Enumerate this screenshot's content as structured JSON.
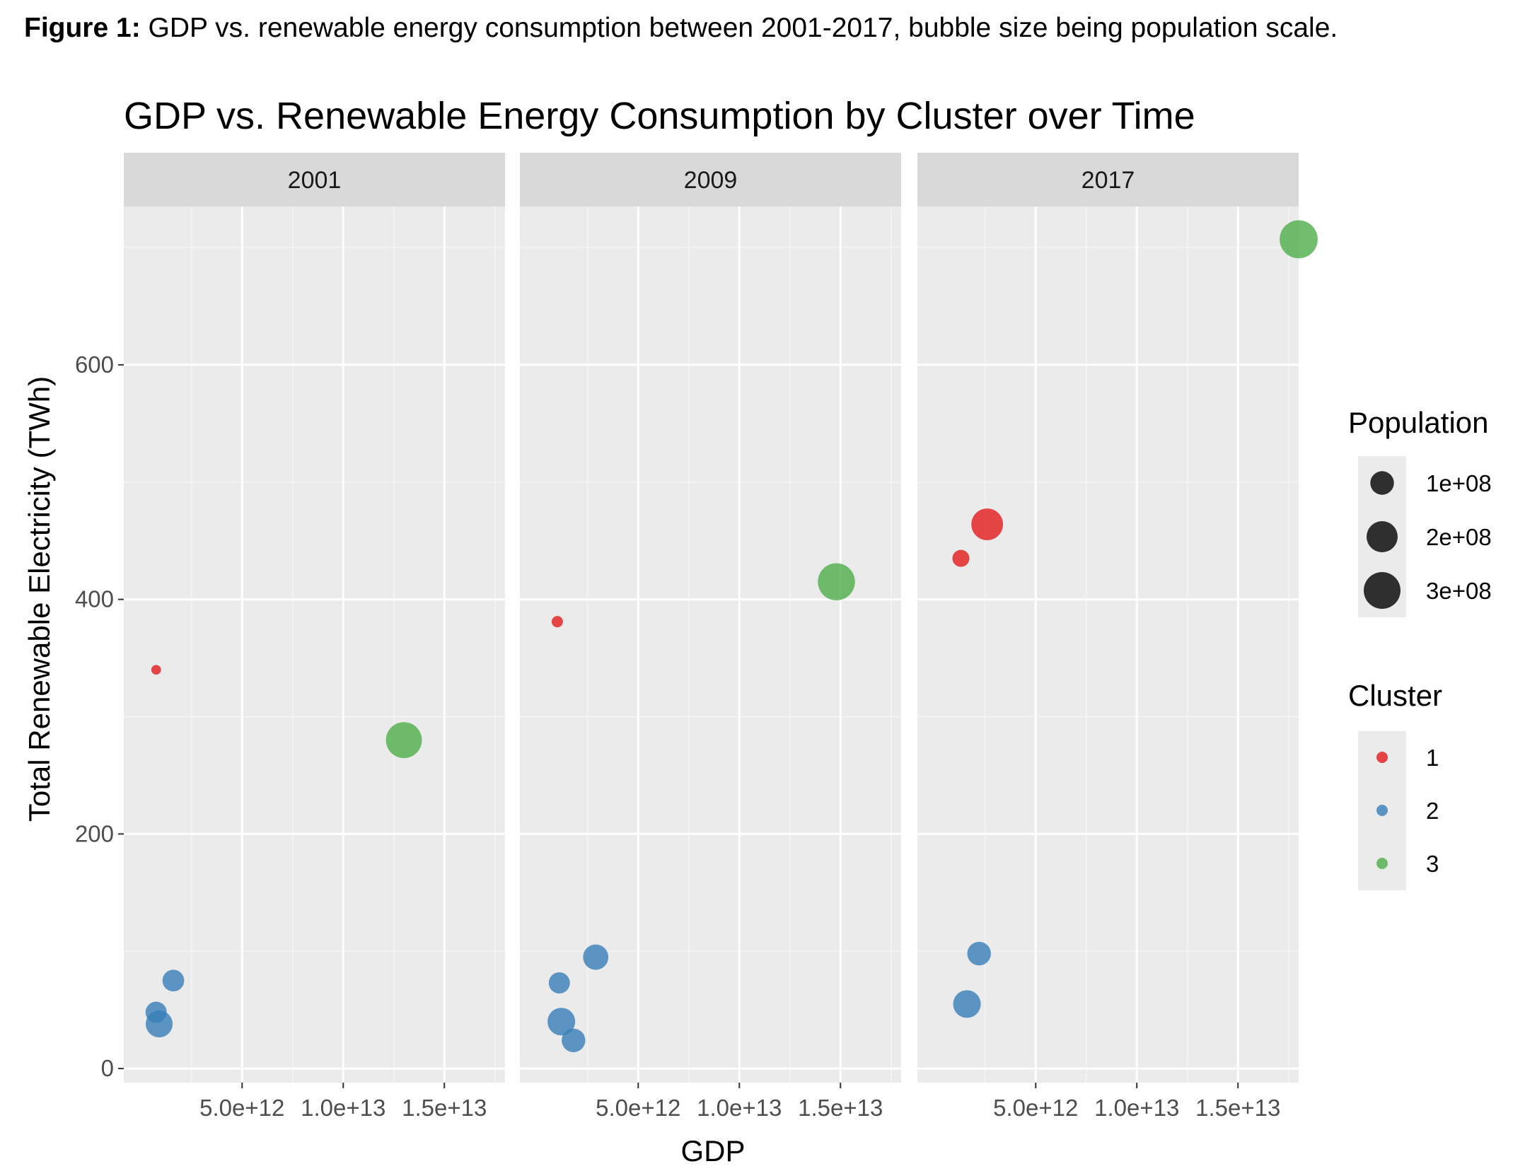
{
  "caption": {
    "label": "Figure 1:",
    "text": " GDP vs. renewable energy consumption between 2001-2017, bubble size being population scale."
  },
  "chart_data": {
    "type": "scatter",
    "title": "GDP vs. Renewable Energy Consumption by Cluster over Time",
    "xlabel": "GDP",
    "ylabel": "Total Renewable Electricity (TWh)",
    "xlim": [
      -850000000000.0,
      18000000000000.0
    ],
    "ylim": [
      -12,
      735
    ],
    "x_ticks": [
      5000000000000.0,
      10000000000000.0,
      15000000000000.0
    ],
    "x_tick_labels": [
      "5.0e+12",
      "1.0e+13",
      "1.5e+13"
    ],
    "y_ticks": [
      0,
      200,
      400,
      600
    ],
    "y_tick_labels": [
      "0",
      "200",
      "400",
      "600"
    ],
    "grid": true,
    "facets": [
      "2001",
      "2009",
      "2017"
    ],
    "legend_placement": "right",
    "legend_population": {
      "title": "Population",
      "entries": [
        {
          "label": "1e+08",
          "value": 100000000
        },
        {
          "label": "2e+08",
          "value": 200000000
        },
        {
          "label": "3e+08",
          "value": 300000000
        }
      ]
    },
    "legend_cluster": {
      "title": "Cluster",
      "entries": [
        {
          "label": "1",
          "color": "#e41a1c"
        },
        {
          "label": "2",
          "color": "#377eb8"
        },
        {
          "label": "3",
          "color": "#4daf4a"
        }
      ]
    },
    "points": [
      {
        "facet": "2001",
        "cluster": "1",
        "gdp": 750000000000.0,
        "twh": 340,
        "population": 5000000
      },
      {
        "facet": "2001",
        "cluster": "2",
        "gdp": 1600000000000.0,
        "twh": 75,
        "population": 80000000
      },
      {
        "facet": "2001",
        "cluster": "2",
        "gdp": 750000000000.0,
        "twh": 48,
        "population": 75000000
      },
      {
        "facet": "2001",
        "cluster": "2",
        "gdp": 900000000000.0,
        "twh": 38,
        "population": 140000000
      },
      {
        "facet": "2001",
        "cluster": "3",
        "gdp": 13000000000000.0,
        "twh": 280,
        "population": 285000000
      },
      {
        "facet": "2009",
        "cluster": "1",
        "gdp": 1000000000000.0,
        "twh": 381,
        "population": 10000000
      },
      {
        "facet": "2009",
        "cluster": "2",
        "gdp": 2900000000000.0,
        "twh": 95,
        "population": 120000000
      },
      {
        "facet": "2009",
        "cluster": "2",
        "gdp": 1100000000000.0,
        "twh": 73,
        "population": 75000000
      },
      {
        "facet": "2009",
        "cluster": "2",
        "gdp": 1200000000000.0,
        "twh": 40,
        "population": 150000000
      },
      {
        "facet": "2009",
        "cluster": "2",
        "gdp": 1800000000000.0,
        "twh": 24,
        "population": 100000000
      },
      {
        "facet": "2009",
        "cluster": "3",
        "gdp": 14800000000000.0,
        "twh": 415,
        "population": 307000000
      },
      {
        "facet": "2017",
        "cluster": "1",
        "gdp": 1300000000000.0,
        "twh": 435,
        "population": 40000000
      },
      {
        "facet": "2017",
        "cluster": "1",
        "gdp": 2600000000000.0,
        "twh": 464,
        "population": 210000000
      },
      {
        "facet": "2017",
        "cluster": "2",
        "gdp": 2200000000000.0,
        "twh": 98,
        "population": 100000000
      },
      {
        "facet": "2017",
        "cluster": "2",
        "gdp": 1600000000000.0,
        "twh": 55,
        "population": 150000000
      },
      {
        "facet": "2017",
        "cluster": "3",
        "gdp": 18000000000000.0,
        "twh": 707,
        "population": 325000000
      }
    ]
  }
}
